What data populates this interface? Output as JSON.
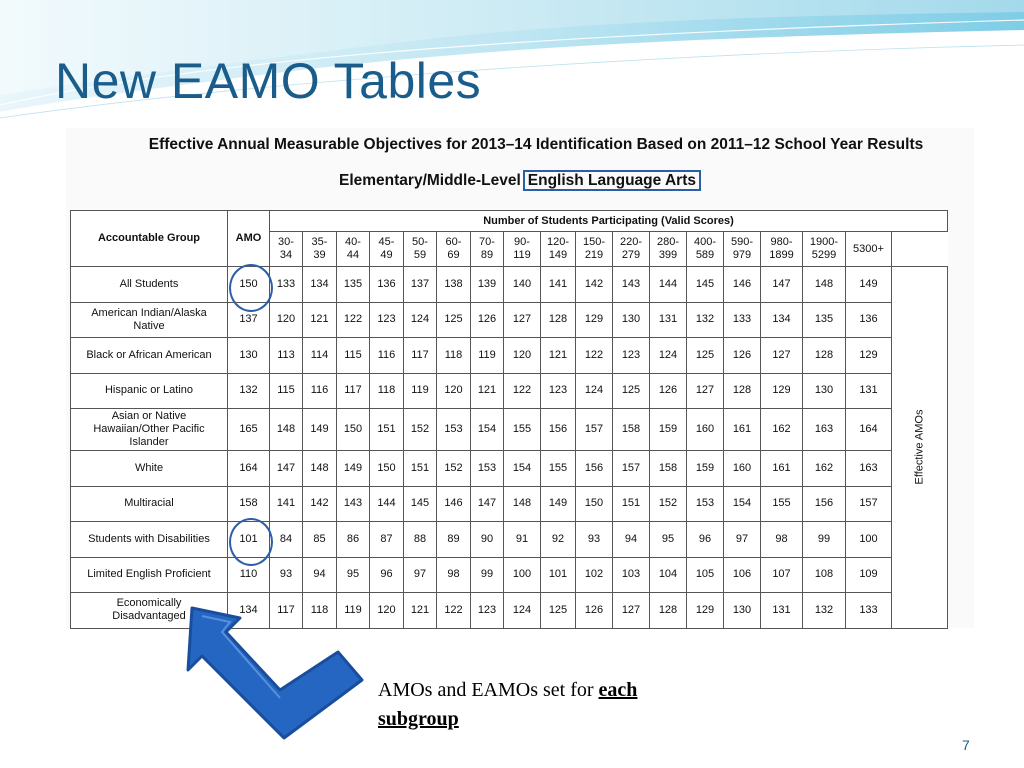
{
  "slide": {
    "title": "New EAMO Tables",
    "table_heading": "Effective Annual Measurable Objectives for 2013–14 Identification Based on 2011–12 School Year Results",
    "subheading_prefix": "Elementary/Middle-Level",
    "subheading_subject": "English Language Arts",
    "caption_text": "AMOs and EAMOs set for ",
    "caption_emphasis_1": "each",
    "caption_emphasis_2": "subgroup",
    "page_number": "7",
    "accent_color": "#1a5c8a",
    "arrow_color": "#2466c2"
  },
  "table": {
    "group_header": "Accountable Group",
    "amo_header": "AMO",
    "participation_header": "Number of Students Participating (Valid Scores)",
    "effective_label": "Effective AMOs",
    "ranges": [
      [
        "30-",
        "34"
      ],
      [
        "35-",
        "39"
      ],
      [
        "40-",
        "44"
      ],
      [
        "45-",
        "49"
      ],
      [
        "50-",
        "59"
      ],
      [
        "60-",
        "69"
      ],
      [
        "70-",
        "89"
      ],
      [
        "90-",
        "119"
      ],
      [
        "120-",
        "149"
      ],
      [
        "150-",
        "219"
      ],
      [
        "220-",
        "279"
      ],
      [
        "280-",
        "399"
      ],
      [
        "400-",
        "589"
      ],
      [
        "590-",
        "979"
      ],
      [
        "980-",
        "1899"
      ],
      [
        "1900-",
        "5299"
      ],
      [
        "5300+"
      ]
    ],
    "rows": [
      {
        "group": [
          "All Students"
        ],
        "amo": "150",
        "values": [
          "133",
          "134",
          "135",
          "136",
          "137",
          "138",
          "139",
          "140",
          "141",
          "142",
          "143",
          "144",
          "145",
          "146",
          "147",
          "148",
          "149"
        ]
      },
      {
        "group": [
          "American Indian/Alaska",
          "Native"
        ],
        "amo": "137",
        "values": [
          "120",
          "121",
          "122",
          "123",
          "124",
          "125",
          "126",
          "127",
          "128",
          "129",
          "130",
          "131",
          "132",
          "133",
          "134",
          "135",
          "136"
        ]
      },
      {
        "group": [
          "Black or African American"
        ],
        "amo": "130",
        "values": [
          "113",
          "114",
          "115",
          "116",
          "117",
          "118",
          "119",
          "120",
          "121",
          "122",
          "123",
          "124",
          "125",
          "126",
          "127",
          "128",
          "129"
        ]
      },
      {
        "group": [
          "Hispanic or Latino"
        ],
        "amo": "132",
        "values": [
          "115",
          "116",
          "117",
          "118",
          "119",
          "120",
          "121",
          "122",
          "123",
          "124",
          "125",
          "126",
          "127",
          "128",
          "129",
          "130",
          "131"
        ]
      },
      {
        "group": [
          "Asian or Native",
          "Hawaiian/Other Pacific",
          "Islander"
        ],
        "amo": "165",
        "values": [
          "148",
          "149",
          "150",
          "151",
          "152",
          "153",
          "154",
          "155",
          "156",
          "157",
          "158",
          "159",
          "160",
          "161",
          "162",
          "163",
          "164"
        ]
      },
      {
        "group": [
          "White"
        ],
        "amo": "164",
        "values": [
          "147",
          "148",
          "149",
          "150",
          "151",
          "152",
          "153",
          "154",
          "155",
          "156",
          "157",
          "158",
          "159",
          "160",
          "161",
          "162",
          "163"
        ]
      },
      {
        "group": [
          "Multiracial"
        ],
        "amo": "158",
        "values": [
          "141",
          "142",
          "143",
          "144",
          "145",
          "146",
          "147",
          "148",
          "149",
          "150",
          "151",
          "152",
          "153",
          "154",
          "155",
          "156",
          "157"
        ]
      },
      {
        "group": [
          "Students with Disabilities"
        ],
        "amo": "101",
        "values": [
          "84",
          "85",
          "86",
          "87",
          "88",
          "89",
          "90",
          "91",
          "92",
          "93",
          "94",
          "95",
          "96",
          "97",
          "98",
          "99",
          "100"
        ]
      },
      {
        "group": [
          "Limited English Proficient"
        ],
        "amo": "110",
        "values": [
          "93",
          "94",
          "95",
          "96",
          "97",
          "98",
          "99",
          "100",
          "101",
          "102",
          "103",
          "104",
          "105",
          "106",
          "107",
          "108",
          "109"
        ]
      },
      {
        "group": [
          "Economically",
          "Disadvantaged"
        ],
        "amo": "134",
        "values": [
          "117",
          "118",
          "119",
          "120",
          "121",
          "122",
          "123",
          "124",
          "125",
          "126",
          "127",
          "128",
          "129",
          "130",
          "131",
          "132",
          "133"
        ]
      }
    ]
  }
}
